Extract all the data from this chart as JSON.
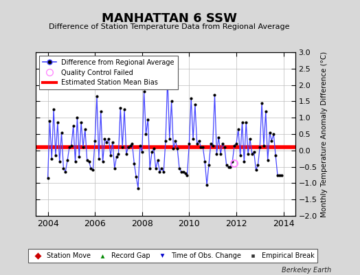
{
  "title": "MANHATTAN 6 SSW",
  "subtitle": "Difference of Station Temperature Data from Regional Average",
  "ylabel": "Monthly Temperature Anomaly Difference (°C)",
  "xlim": [
    2003.5,
    2014.5
  ],
  "ylim": [
    -2.0,
    3.0
  ],
  "yticks": [
    -2,
    -1.5,
    -1,
    -0.5,
    0,
    0.5,
    1,
    1.5,
    2,
    2.5,
    3
  ],
  "xticks": [
    2004,
    2006,
    2008,
    2010,
    2012,
    2014
  ],
  "bias_value": 0.1,
  "background_color": "#d8d8d8",
  "plot_bg_color": "#ffffff",
  "line_color": "#4444ff",
  "bias_color": "#ff0000",
  "dot_color": "#000000",
  "qc_color": "#ff88ff",
  "watermark": "Berkeley Earth",
  "data_x": [
    2004.0,
    2004.083,
    2004.167,
    2004.25,
    2004.333,
    2004.417,
    2004.5,
    2004.583,
    2004.667,
    2004.75,
    2004.833,
    2004.917,
    2005.0,
    2005.083,
    2005.167,
    2005.25,
    2005.333,
    2005.417,
    2005.5,
    2005.583,
    2005.667,
    2005.75,
    2005.833,
    2005.917,
    2006.0,
    2006.083,
    2006.167,
    2006.25,
    2006.333,
    2006.417,
    2006.5,
    2006.583,
    2006.667,
    2006.75,
    2006.833,
    2006.917,
    2007.0,
    2007.083,
    2007.167,
    2007.25,
    2007.333,
    2007.417,
    2007.5,
    2007.583,
    2007.667,
    2007.75,
    2007.833,
    2007.917,
    2008.0,
    2008.083,
    2008.167,
    2008.25,
    2008.333,
    2008.417,
    2008.5,
    2008.583,
    2008.667,
    2008.75,
    2008.833,
    2008.917,
    2009.0,
    2009.083,
    2009.167,
    2009.25,
    2009.333,
    2009.417,
    2009.5,
    2009.583,
    2009.667,
    2009.75,
    2009.833,
    2009.917,
    2010.0,
    2010.083,
    2010.167,
    2010.25,
    2010.333,
    2010.417,
    2010.5,
    2010.583,
    2010.667,
    2010.75,
    2010.833,
    2010.917,
    2011.0,
    2011.083,
    2011.167,
    2011.25,
    2011.333,
    2011.417,
    2011.5,
    2011.583,
    2011.667,
    2011.75,
    2011.833,
    2011.917,
    2012.0,
    2012.083,
    2012.167,
    2012.25,
    2012.333,
    2012.417,
    2012.5,
    2012.583,
    2012.667,
    2012.75,
    2012.833,
    2012.917,
    2013.0,
    2013.083,
    2013.167,
    2013.25,
    2013.333,
    2013.417,
    2013.5,
    2013.583,
    2013.667,
    2013.75,
    2013.833,
    2013.917
  ],
  "data_y": [
    -0.85,
    0.9,
    -0.25,
    1.25,
    -0.15,
    0.85,
    -0.35,
    0.55,
    -0.55,
    -0.65,
    -0.3,
    0.1,
    0.15,
    0.75,
    -0.35,
    1.0,
    -0.2,
    0.85,
    0.1,
    0.65,
    -0.3,
    -0.35,
    -0.55,
    -0.6,
    0.3,
    1.65,
    -0.25,
    1.2,
    -0.35,
    0.35,
    0.25,
    0.35,
    -0.15,
    0.25,
    -0.55,
    -0.2,
    -0.1,
    1.3,
    0.1,
    1.25,
    -0.1,
    0.1,
    0.15,
    0.2,
    -0.4,
    -0.8,
    -1.15,
    0.15,
    -0.05,
    1.8,
    0.5,
    0.95,
    -0.55,
    -0.05,
    0.05,
    -0.55,
    -0.3,
    -0.65,
    -0.55,
    -0.65,
    0.3,
    2.2,
    0.35,
    1.5,
    0.05,
    0.3,
    0.05,
    -0.55,
    -0.65,
    -0.65,
    -0.7,
    -0.75,
    0.2,
    1.6,
    0.35,
    1.4,
    0.2,
    0.3,
    0.1,
    0.1,
    -0.35,
    -1.05,
    -0.45,
    0.2,
    0.15,
    1.7,
    -0.1,
    0.4,
    -0.1,
    0.2,
    0.1,
    -0.45,
    -0.5,
    -0.5,
    -0.35,
    0.15,
    0.2,
    0.65,
    -0.15,
    0.85,
    -0.35,
    0.85,
    -0.1,
    0.35,
    -0.1,
    -0.05,
    -0.6,
    -0.45,
    0.1,
    1.45,
    0.15,
    1.2,
    -0.3,
    0.55,
    0.3,
    0.5,
    -0.15,
    -0.75,
    -0.75,
    -0.75
  ],
  "qc_failed_x": [
    2011.917
  ],
  "qc_failed_y": [
    -0.4
  ]
}
